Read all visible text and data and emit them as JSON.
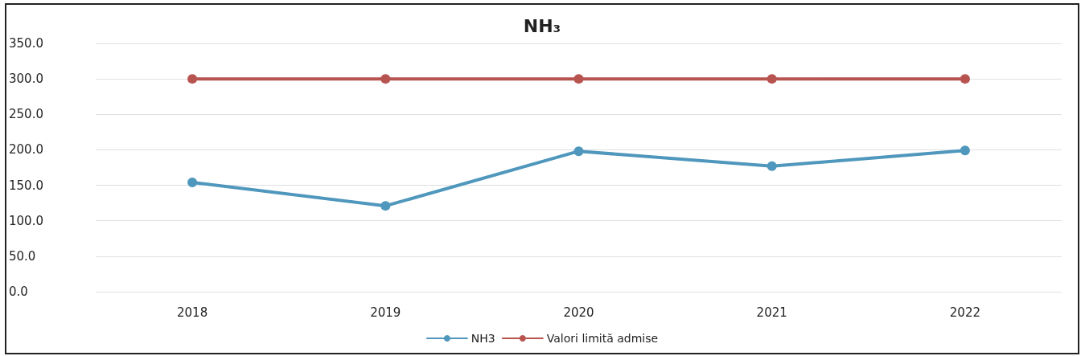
{
  "chart_data": {
    "type": "line",
    "title": "NH₃",
    "categories": [
      "2018",
      "2019",
      "2020",
      "2021",
      "2022"
    ],
    "series": [
      {
        "name": "NH3",
        "color": "#4f97bc",
        "values": [
          154,
          121,
          198,
          177,
          199
        ]
      },
      {
        "name": "Valori limită admise",
        "color": "#b85450",
        "values": [
          300,
          300,
          300,
          300,
          300
        ]
      }
    ],
    "ylim": [
      0,
      350
    ],
    "yticks": [
      {
        "value": 0,
        "label": "0.0"
      },
      {
        "value": 50,
        "label": "50.0"
      },
      {
        "value": 100,
        "label": "100.0"
      },
      {
        "value": 150,
        "label": "150.0"
      },
      {
        "value": 200,
        "label": "200.0"
      },
      {
        "value": 250,
        "label": "250.0"
      },
      {
        "value": 300,
        "label": "300.0"
      },
      {
        "value": 350,
        "label": "350.0"
      }
    ],
    "grid": "y",
    "legend": "bottom",
    "marker": "circle",
    "line_style": "solid"
  }
}
